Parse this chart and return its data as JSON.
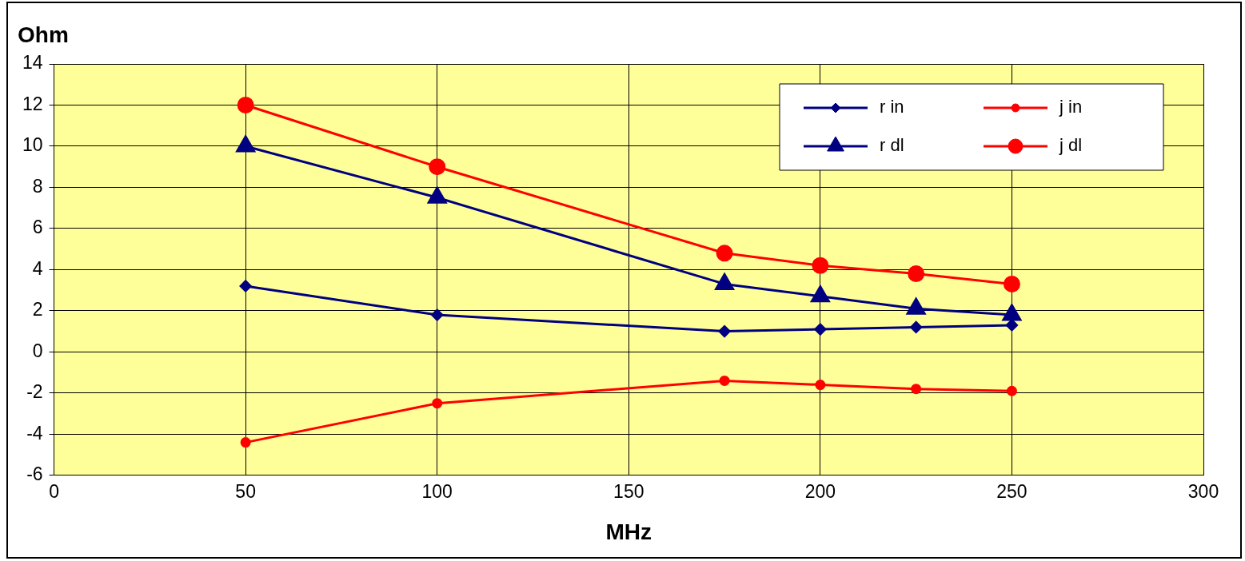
{
  "chart_data": {
    "type": "line",
    "xlabel": "MHz",
    "ylabel": "Ohm",
    "xlim": [
      0,
      300
    ],
    "xticks": [
      0,
      50,
      100,
      150,
      200,
      250,
      300
    ],
    "ylim": [
      -6,
      14
    ],
    "yticks": [
      -6,
      -4,
      -2,
      0,
      2,
      4,
      6,
      8,
      10,
      12,
      14
    ],
    "grid": true,
    "legend": "top right",
    "line_style": "solid",
    "series": [
      {
        "name": "r in",
        "color": "#000080",
        "marker": "diamond",
        "x": [
          50,
          100,
          175,
          200,
          225,
          250
        ],
        "values": [
          3.2,
          1.8,
          1.0,
          1.1,
          1.2,
          1.3
        ]
      },
      {
        "name": "j in",
        "color": "#ff0000",
        "marker": "circle",
        "x": [
          50,
          100,
          175,
          200,
          225,
          250
        ],
        "values": [
          -4.4,
          -2.5,
          -1.4,
          -1.6,
          -1.8,
          -1.9
        ]
      },
      {
        "name": "r dl",
        "color": "#000080",
        "marker": "triangle",
        "x": [
          50,
          100,
          175,
          200,
          225,
          250
        ],
        "values": [
          10,
          7.5,
          3.3,
          2.7,
          2.1,
          1.8
        ]
      },
      {
        "name": "j dl",
        "color": "#ff0000",
        "marker": "circle",
        "x": [
          50,
          100,
          175,
          200,
          225,
          250
        ],
        "values": [
          12,
          9,
          4.8,
          4.2,
          3.8,
          3.3
        ]
      }
    ]
  }
}
